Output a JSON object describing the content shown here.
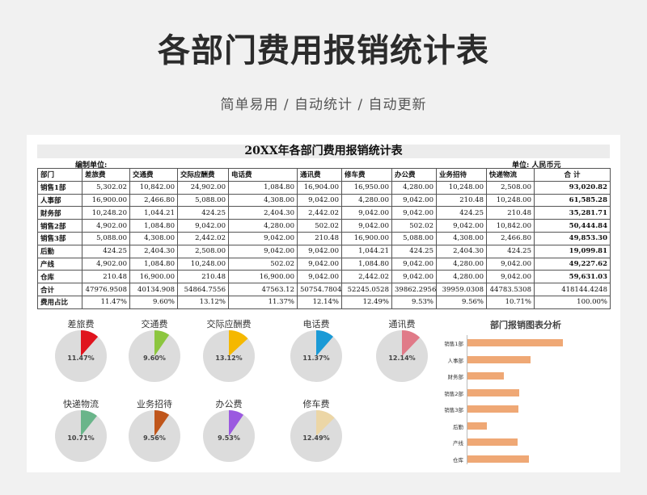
{
  "page": {
    "title": "各部门费用报销统计表",
    "subtitle": "简单易用  /  自动统计  /  自动更新"
  },
  "sheet": {
    "title": "20XX年各部门费用报销统计表",
    "unit_left": "编制单位:",
    "unit_right": "单位:  人民币元",
    "headers": [
      "部门",
      "差旅费",
      "交通费",
      "交际应酬费",
      "电话费",
      "通讯费",
      "修车费",
      "办公费",
      "业务招待",
      "快递物流",
      "合  计"
    ],
    "rows": [
      [
        "销售1部",
        "5,302.02",
        "10,842.00",
        "24,902.00",
        "1,084.80",
        "16,904.00",
        "16,950.00",
        "4,280.00",
        "10,248.00",
        "2,508.00",
        "93,020.82"
      ],
      [
        "人事部",
        "16,900.00",
        "2,466.80",
        "5,088.00",
        "4,308.00",
        "9,042.00",
        "4,280.00",
        "9,042.00",
        "210.48",
        "10,248.00",
        "61,585.28"
      ],
      [
        "财务部",
        "10,248.20",
        "1,044.21",
        "424.25",
        "2,404.30",
        "2,442.02",
        "9,042.00",
        "9,042.00",
        "424.25",
        "210.48",
        "35,281.71"
      ],
      [
        "销售2部",
        "4,902.00",
        "1,084.80",
        "9,042.00",
        "4,280.00",
        "502.02",
        "9,042.00",
        "502.02",
        "9,042.00",
        "10,842.00",
        "50,444.84"
      ],
      [
        "销售3部",
        "5,088.00",
        "4,308.00",
        "2,442.02",
        "9,042.00",
        "210.48",
        "16,900.00",
        "5,088.00",
        "4,308.00",
        "2,466.80",
        "49,853.30"
      ],
      [
        "后勤",
        "424.25",
        "2,404.30",
        "2,508.00",
        "9,042.00",
        "9,042.00",
        "1,044.21",
        "424.25",
        "2,404.30",
        "424.25",
        "19,099.81"
      ],
      [
        "产线",
        "4,902.00",
        "1,084.80",
        "10,248.00",
        "502.02",
        "9,042.00",
        "1,084.80",
        "9,042.00",
        "4,280.00",
        "9,042.00",
        "49,227.62"
      ],
      [
        "仓库",
        "210.48",
        "16,900.00",
        "210.48",
        "16,900.00",
        "9,042.00",
        "2,442.02",
        "9,042.00",
        "4,280.00",
        "9,042.00",
        "59,631.03"
      ]
    ],
    "total_row": [
      "合计",
      "47976.9508",
      "40134.908",
      "54864.7556",
      "47563.12",
      "50754.7804",
      "52245.0528",
      "39862.2956",
      "39959.0308",
      "44783.5308",
      "418144.4248"
    ],
    "share_row": [
      "费用占比",
      "11.47%",
      "9.60%",
      "13.12%",
      "11.37%",
      "12.14%",
      "12.49%",
      "9.53%",
      "9.56%",
      "10.71%",
      "100.00%"
    ]
  },
  "pies": [
    {
      "label": "差旅费",
      "pct": "11.47%",
      "value": 11.47,
      "color": "#e0141e"
    },
    {
      "label": "交通费",
      "pct": "9.60%",
      "value": 9.6,
      "color": "#8cc63f"
    },
    {
      "label": "交际应酬费",
      "pct": "13.12%",
      "value": 13.12,
      "color": "#f5b800"
    },
    {
      "label": "电话费",
      "pct": "11.37%",
      "value": 11.37,
      "color": "#1a9ad6"
    },
    {
      "label": "通讯费",
      "pct": "12.14%",
      "value": 12.14,
      "color": "#e07a88"
    },
    {
      "label": "快递物流",
      "pct": "10.71%",
      "value": 10.71,
      "color": "#6ab58a"
    },
    {
      "label": "业务招待",
      "pct": "9.56%",
      "value": 9.56,
      "color": "#c0561b"
    },
    {
      "label": "办公费",
      "pct": "9.53%",
      "value": 9.53,
      "color": "#9b59e0"
    },
    {
      "label": "修车费",
      "pct": "12.49%",
      "value": 12.49,
      "color": "#ecd6a6"
    }
  ],
  "chart_data": {
    "type": "bar",
    "title": "部门报销图表分析",
    "categories": [
      "销售1部",
      "人事部",
      "财务部",
      "销售2部",
      "销售3部",
      "后勤",
      "产线",
      "仓库"
    ],
    "values": [
      93020.82,
      61585.28,
      35281.71,
      50444.84,
      49853.3,
      19099.81,
      49227.62,
      59631.03
    ],
    "color": "#efa875",
    "xlim": [
      0,
      130000
    ],
    "grid": false
  }
}
